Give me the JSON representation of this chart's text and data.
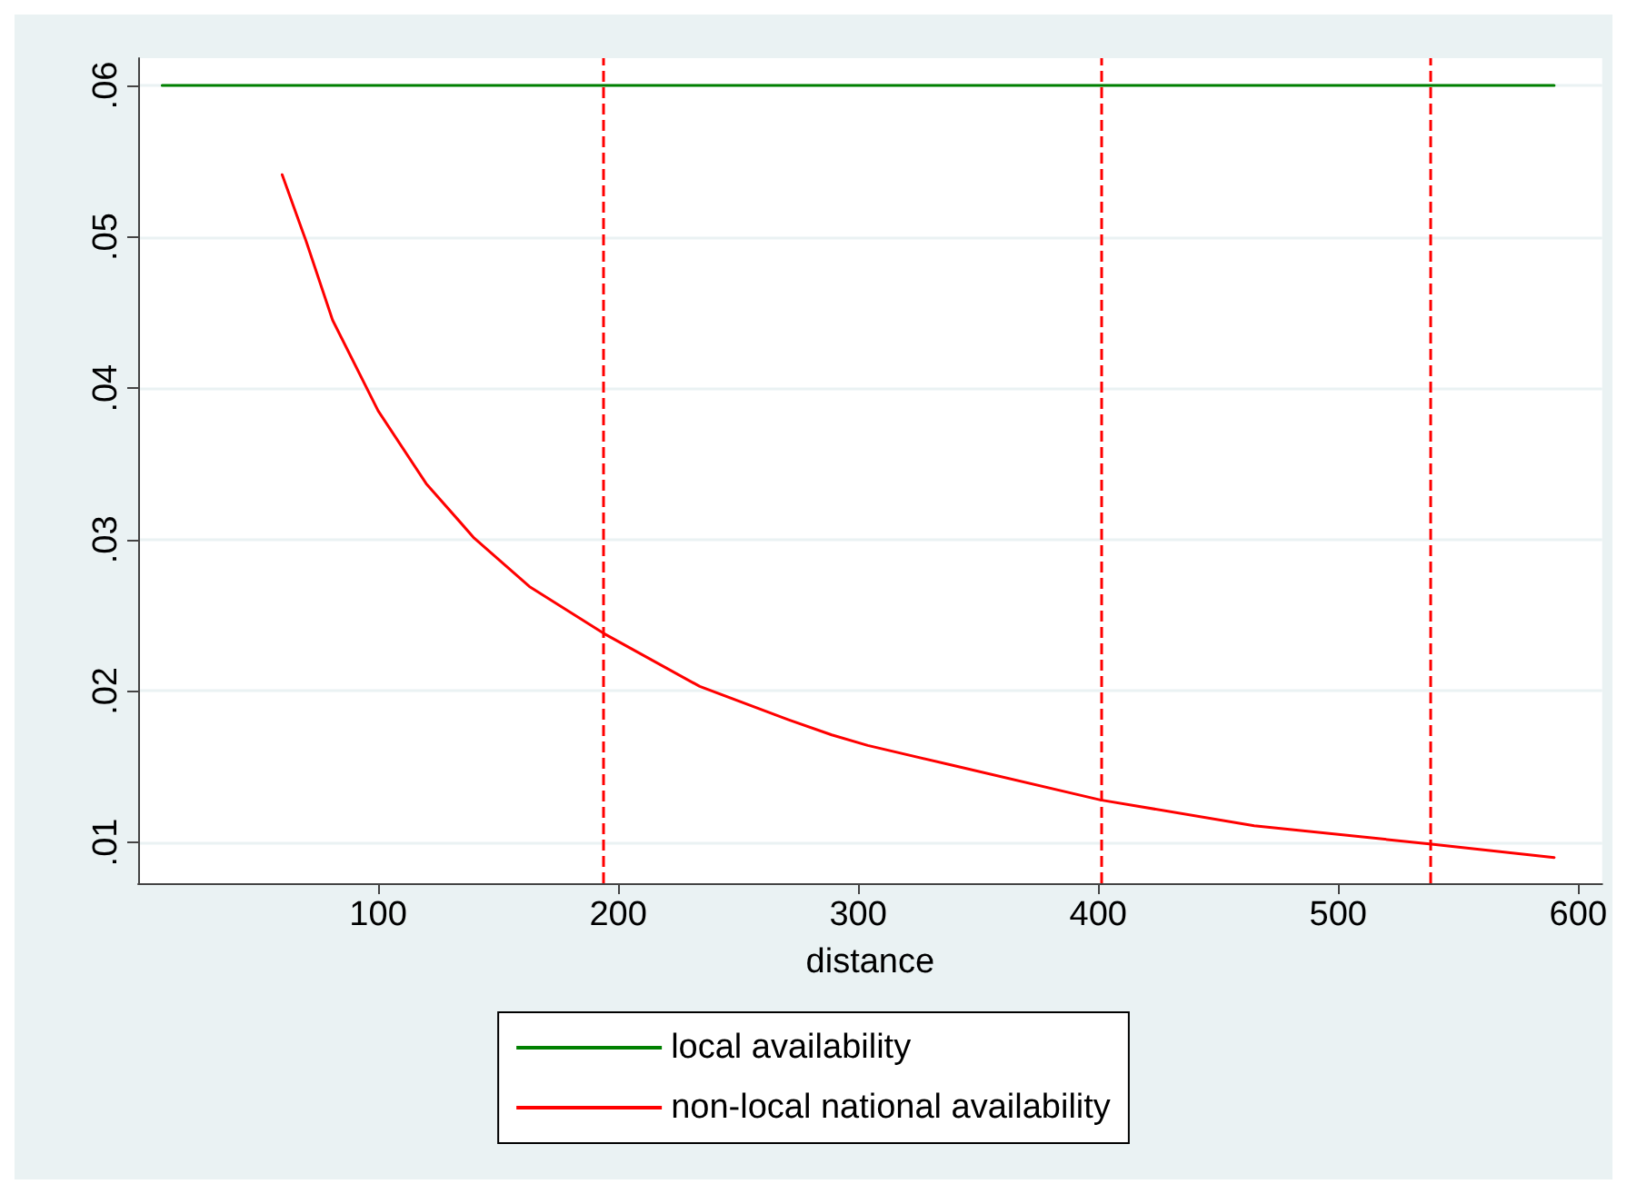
{
  "chart_data": {
    "type": "line",
    "xlabel": "distance",
    "series": [
      {
        "name": "local availability",
        "color": "#008000",
        "x": [
          10,
          590
        ],
        "values": [
          0.06,
          0.06
        ]
      },
      {
        "name": "non-local national availability",
        "color": "#ff0000",
        "x": [
          60,
          70,
          81,
          100,
          120,
          140,
          163,
          194,
          234,
          271,
          289,
          304,
          339,
          401,
          465,
          538,
          590
        ],
        "values": [
          0.0541,
          0.0497,
          0.0445,
          0.0385,
          0.0337,
          0.0301,
          0.0269,
          0.0238,
          0.0203,
          0.0181,
          0.0171,
          0.0164,
          0.0151,
          0.0128,
          0.0111,
          0.0099,
          0.009
        ]
      }
    ],
    "xlim": [
      0,
      610
    ],
    "xticks": [
      100,
      200,
      300,
      400,
      500,
      600
    ],
    "ylim": [
      0.0073,
      0.0618
    ],
    "yticks": [
      {
        "value": 0.01,
        "label": ".01"
      },
      {
        "value": 0.02,
        "label": ".02"
      },
      {
        "value": 0.03,
        "label": ".03"
      },
      {
        "value": 0.04,
        "label": ".04"
      },
      {
        "value": 0.05,
        "label": ".05"
      },
      {
        "value": 0.06,
        "label": ".06"
      }
    ],
    "ref_lines": [
      {
        "axis": "x",
        "value": 194,
        "color": "#ff0000",
        "line_style": "dashed"
      },
      {
        "axis": "x",
        "value": 401,
        "color": "#ff0000",
        "line_style": "dashed"
      },
      {
        "axis": "x",
        "value": 538,
        "color": "#ff0000",
        "line_style": "dashed"
      }
    ],
    "grid": "y",
    "legend": "bottom",
    "marker": "none",
    "line_style": "solid"
  }
}
